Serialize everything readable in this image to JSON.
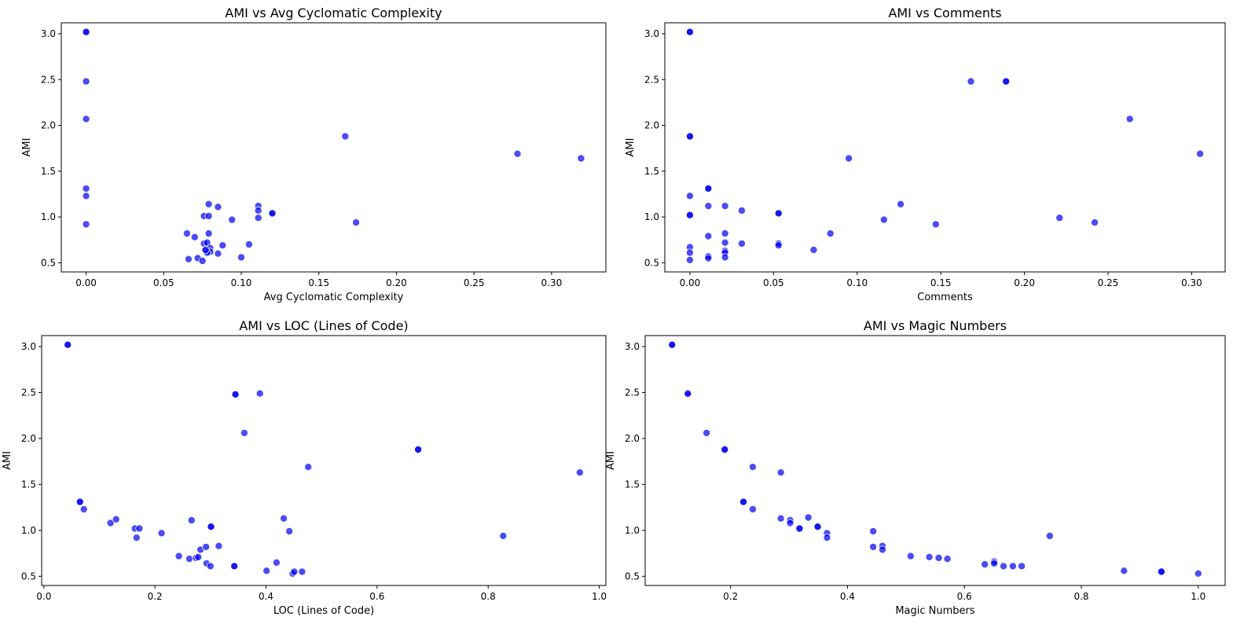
{
  "chart_data": [
    {
      "type": "scatter",
      "title": "AMI vs Avg Cyclomatic Complexity",
      "xlabel": "Avg Cyclomatic Complexity",
      "ylabel": "AMI",
      "xlim": [
        -0.016,
        0.335
      ],
      "ylim": [
        0.4,
        3.12
      ],
      "xticks": [
        0.0,
        0.05,
        0.1,
        0.15,
        0.2,
        0.25,
        0.3
      ],
      "xtick_labels": [
        "0.00",
        "0.05",
        "0.10",
        "0.15",
        "0.20",
        "0.25",
        "0.30"
      ],
      "yticks": [
        0.5,
        1.0,
        1.5,
        2.0,
        2.5,
        3.0
      ],
      "ytick_labels": [
        "0.5",
        "1.0",
        "1.5",
        "2.0",
        "2.5",
        "3.0"
      ],
      "grid": false,
      "marker_color": "#0000ee",
      "x": [
        0.0,
        0.0,
        0.0,
        0.0,
        0.0,
        0.0,
        0.0,
        0.167,
        0.278,
        0.319,
        0.174,
        0.12,
        0.12,
        0.111,
        0.111,
        0.111,
        0.094,
        0.085,
        0.079,
        0.076,
        0.079,
        0.065,
        0.07,
        0.079,
        0.076,
        0.078,
        0.08,
        0.077,
        0.088,
        0.105,
        0.085,
        0.08,
        0.078,
        0.077,
        0.066,
        0.072,
        0.075,
        0.1
      ],
      "y": [
        3.02,
        3.02,
        2.48,
        2.07,
        1.31,
        1.23,
        0.92,
        1.88,
        1.69,
        1.64,
        0.94,
        1.04,
        1.04,
        1.12,
        1.07,
        0.99,
        0.97,
        1.11,
        1.14,
        1.01,
        1.01,
        0.82,
        0.78,
        0.82,
        0.71,
        0.72,
        0.66,
        0.63,
        0.69,
        0.7,
        0.6,
        0.62,
        0.61,
        0.64,
        0.54,
        0.55,
        0.52,
        0.56
      ]
    },
    {
      "type": "scatter",
      "title": "AMI vs Comments",
      "xlabel": "Comments",
      "ylabel": "AMI",
      "xlim": [
        -0.015,
        0.32
      ],
      "ylim": [
        0.4,
        3.12
      ],
      "xticks": [
        0.0,
        0.05,
        0.1,
        0.15,
        0.2,
        0.25,
        0.3
      ],
      "xtick_labels": [
        "0.00",
        "0.05",
        "0.10",
        "0.15",
        "0.20",
        "0.25",
        "0.30"
      ],
      "yticks": [
        0.5,
        1.0,
        1.5,
        2.0,
        2.5,
        3.0
      ],
      "ytick_labels": [
        "0.5",
        "1.0",
        "1.5",
        "2.0",
        "2.5",
        "3.0"
      ],
      "grid": false,
      "marker_color": "#0000ee",
      "x": [
        0.0,
        0.0,
        0.0,
        0.0,
        0.0,
        0.0,
        0.0,
        0.0,
        0.0,
        0.0,
        0.168,
        0.189,
        0.189,
        0.263,
        0.305,
        0.095,
        0.011,
        0.011,
        0.011,
        0.011,
        0.011,
        0.011,
        0.021,
        0.021,
        0.021,
        0.021,
        0.021,
        0.021,
        0.031,
        0.031,
        0.053,
        0.053,
        0.053,
        0.053,
        0.074,
        0.084,
        0.116,
        0.126,
        0.147,
        0.221,
        0.242
      ],
      "y": [
        3.02,
        3.02,
        1.88,
        1.88,
        1.23,
        1.02,
        1.02,
        0.67,
        0.61,
        0.53,
        2.48,
        2.48,
        2.48,
        2.07,
        1.69,
        1.64,
        1.31,
        1.31,
        1.12,
        0.79,
        0.57,
        0.55,
        1.12,
        0.82,
        0.72,
        0.63,
        0.61,
        0.56,
        1.07,
        0.71,
        1.04,
        1.04,
        0.71,
        0.69,
        0.64,
        0.82,
        0.97,
        1.14,
        0.92,
        0.99,
        0.94
      ]
    },
    {
      "type": "scatter",
      "title": "AMI vs LOC (Lines of Code)",
      "xlabel": "LOC (Lines of Code)",
      "ylabel": "AMI",
      "xlim": [
        -0.004,
        1.012
      ],
      "ylim": [
        0.4,
        3.12
      ],
      "xticks": [
        0.0,
        0.2,
        0.4,
        0.6,
        0.8,
        1.0
      ],
      "xtick_labels": [
        "0.0",
        "0.2",
        "0.4",
        "0.6",
        "0.8",
        "1.0"
      ],
      "yticks": [
        0.5,
        1.0,
        1.5,
        2.0,
        2.5,
        3.0
      ],
      "ytick_labels": [
        "0.5",
        "1.0",
        "1.5",
        "2.0",
        "2.5",
        "3.0"
      ],
      "grid": false,
      "marker_color": "#0000ee",
      "x": [
        0.043,
        0.043,
        0.345,
        0.345,
        0.389,
        0.361,
        0.674,
        0.674,
        0.476,
        0.965,
        0.827,
        0.065,
        0.065,
        0.072,
        0.12,
        0.13,
        0.164,
        0.172,
        0.167,
        0.212,
        0.266,
        0.301,
        0.301,
        0.432,
        0.442,
        0.243,
        0.262,
        0.274,
        0.278,
        0.282,
        0.292,
        0.315,
        0.293,
        0.3,
        0.343,
        0.343,
        0.401,
        0.419,
        0.448,
        0.451,
        0.465
      ],
      "y": [
        3.02,
        3.02,
        2.48,
        2.48,
        2.49,
        2.06,
        1.88,
        1.88,
        1.69,
        1.63,
        0.94,
        1.31,
        1.31,
        1.23,
        1.08,
        1.12,
        1.02,
        1.02,
        0.92,
        0.97,
        1.11,
        1.04,
        1.04,
        1.13,
        0.99,
        0.72,
        0.69,
        0.7,
        0.71,
        0.79,
        0.82,
        0.83,
        0.64,
        0.61,
        0.61,
        0.61,
        0.56,
        0.65,
        0.53,
        0.55,
        0.55
      ]
    },
    {
      "type": "scatter",
      "title": "AMI vs Magic Numbers",
      "xlabel": "Magic Numbers",
      "ylabel": "AMI",
      "xlim": [
        0.054,
        1.046
      ],
      "ylim": [
        0.4,
        3.12
      ],
      "xticks": [
        0.2,
        0.4,
        0.6,
        0.8,
        1.0
      ],
      "xtick_labels": [
        "0.2",
        "0.4",
        "0.6",
        "0.8",
        "1.0"
      ],
      "yticks": [
        0.5,
        1.0,
        1.5,
        2.0,
        2.5,
        3.0
      ],
      "ytick_labels": [
        "0.5",
        "1.0",
        "1.5",
        "2.0",
        "2.5",
        "3.0"
      ],
      "grid": false,
      "marker_color": "#0000ee",
      "x": [
        0.1,
        0.1,
        0.127,
        0.127,
        0.159,
        0.19,
        0.19,
        0.238,
        0.286,
        0.222,
        0.222,
        0.238,
        0.286,
        0.302,
        0.302,
        0.318,
        0.318,
        0.333,
        0.349,
        0.349,
        0.365,
        0.365,
        0.444,
        0.444,
        0.46,
        0.46,
        0.508,
        0.54,
        0.556,
        0.571,
        0.635,
        0.651,
        0.651,
        0.667,
        0.683,
        0.698,
        0.746,
        0.873,
        0.937,
        0.937,
        1.0
      ],
      "y": [
        3.02,
        3.02,
        2.48,
        2.49,
        2.06,
        1.88,
        1.88,
        1.69,
        1.63,
        1.31,
        1.31,
        1.23,
        1.13,
        1.11,
        1.08,
        1.02,
        1.02,
        1.14,
        1.04,
        1.04,
        0.97,
        0.92,
        0.99,
        0.82,
        0.83,
        0.79,
        0.72,
        0.71,
        0.7,
        0.69,
        0.63,
        0.66,
        0.64,
        0.61,
        0.61,
        0.61,
        0.94,
        0.56,
        0.55,
        0.55,
        0.53
      ]
    }
  ]
}
